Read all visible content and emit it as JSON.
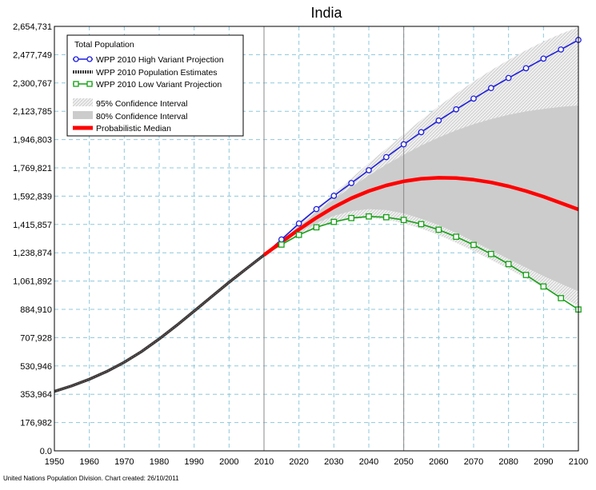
{
  "chart_data": {
    "type": "line",
    "title": "India",
    "credit": "United Nations Population Division. Chart created: 26/10/2011",
    "xlim": [
      1950,
      2100
    ],
    "ylim": [
      0,
      2654731
    ],
    "x_ticks": [
      1950,
      1960,
      1970,
      1980,
      1990,
      2000,
      2010,
      2020,
      2030,
      2040,
      2050,
      2060,
      2070,
      2080,
      2090,
      2100
    ],
    "y_ticks": [
      0,
      176982,
      353964,
      530946,
      707928,
      884910,
      1061892,
      1238874,
      1415857,
      1592839,
      1769821,
      1946803,
      2123785,
      2300767,
      2477749,
      2654731
    ],
    "y_tick_labels": [
      "0.0",
      "176,982",
      "353,964",
      "530,946",
      "707,928",
      "884,910",
      "1,061,892",
      "1,238,874",
      "1,415,857",
      "1,592,839",
      "1,769,821",
      "1,946,803",
      "2,123,785",
      "2,300,767",
      "2,477,749",
      "2,654,731"
    ],
    "grid": true,
    "vertical_markers": [
      2010,
      2050
    ],
    "legend": {
      "title": "Total Population",
      "position": "top-left",
      "entries": [
        "WPP 2010 High Variant Projection",
        "WPP 2010 Population Estimates",
        "WPP 2010 Low Variant Projection",
        "95% Confidence Interval",
        "80% Confidence Interval",
        "Probabilistic Median"
      ]
    },
    "colors": {
      "high": "#1e1edc",
      "estimates": "#3a3a3a",
      "low": "#16a016",
      "median": "#ff0000",
      "ci95": "#e6e6e6",
      "ci80": "#cccccc",
      "grid": "#8ec8dc",
      "marker_line": "#888888"
    },
    "series": [
      {
        "name": "WPP 2010 Population Estimates",
        "x": [
          1950,
          1955,
          1960,
          1965,
          1970,
          1975,
          1980,
          1985,
          1990,
          1995,
          2000,
          2005,
          2010
        ],
        "values": [
          371857,
          406374,
          447844,
          496400,
          553943,
          622097,
          700059,
          784491,
          873785,
          964486,
          1053898,
          1140043,
          1224614
        ]
      },
      {
        "name": "WPP 2010 High Variant Projection",
        "x": [
          2010,
          2015,
          2020,
          2025,
          2030,
          2035,
          2040,
          2045,
          2050,
          2055,
          2060,
          2065,
          2070,
          2075,
          2080,
          2085,
          2090,
          2095,
          2100
        ],
        "values": [
          1224614,
          1322000,
          1422000,
          1512000,
          1595000,
          1675000,
          1755000,
          1837000,
          1917000,
          1993000,
          2066000,
          2136000,
          2203000,
          2269000,
          2332000,
          2393000,
          2453000,
          2510000,
          2570000
        ]
      },
      {
        "name": "WPP 2010 Low Variant Projection",
        "x": [
          2010,
          2015,
          2020,
          2025,
          2030,
          2035,
          2040,
          2045,
          2050,
          2055,
          2060,
          2065,
          2070,
          2075,
          2080,
          2085,
          2090,
          2095,
          2100
        ],
        "values": [
          1224614,
          1290000,
          1351000,
          1398000,
          1432000,
          1456000,
          1466000,
          1461000,
          1444000,
          1418000,
          1383000,
          1339000,
          1288000,
          1231000,
          1168000,
          1100000,
          1028000,
          955000,
          884000
        ]
      },
      {
        "name": "Probabilistic Median",
        "x": [
          2010,
          2015,
          2020,
          2025,
          2030,
          2035,
          2040,
          2045,
          2050,
          2055,
          2060,
          2065,
          2070,
          2075,
          2080,
          2085,
          2090,
          2095,
          2100
        ],
        "values": [
          1224614,
          1306000,
          1385000,
          1458000,
          1524000,
          1580000,
          1625000,
          1660000,
          1686000,
          1702000,
          1708000,
          1706000,
          1696000,
          1679000,
          1655000,
          1625000,
          1590000,
          1550000,
          1510000
        ]
      },
      {
        "name": "95% Confidence Interval",
        "x": [
          2010,
          2015,
          2020,
          2025,
          2030,
          2035,
          2040,
          2045,
          2050,
          2055,
          2060,
          2065,
          2070,
          2075,
          2080,
          2085,
          2090,
          2095,
          2100
        ],
        "lower": [
          1224614,
          1295000,
          1354000,
          1400000,
          1432000,
          1450000,
          1455000,
          1446000,
          1423000,
          1390000,
          1350000,
          1302000,
          1250000,
          1195000,
          1138000,
          1080000,
          1022000,
          964000,
          905000
        ],
        "upper": [
          1224614,
          1318000,
          1416000,
          1515000,
          1610000,
          1705000,
          1800000,
          1890000,
          1980000,
          2070000,
          2155000,
          2235000,
          2310000,
          2380000,
          2445000,
          2505000,
          2560000,
          2608000,
          2650000
        ]
      },
      {
        "name": "80% Confidence Interval",
        "x": [
          2010,
          2015,
          2020,
          2025,
          2030,
          2035,
          2040,
          2045,
          2050,
          2055,
          2060,
          2065,
          2070,
          2075,
          2080,
          2085,
          2090,
          2095,
          2100
        ],
        "lower": [
          1224614,
          1300000,
          1368000,
          1425000,
          1470000,
          1500000,
          1512000,
          1506000,
          1485000,
          1452000,
          1412000,
          1363000,
          1310000,
          1255000,
          1200000,
          1146000,
          1094000,
          1045000,
          998000
        ],
        "upper": [
          1224614,
          1312000,
          1403000,
          1490000,
          1573000,
          1650000,
          1722000,
          1790000,
          1852000,
          1910000,
          1960000,
          2005000,
          2043000,
          2075000,
          2102000,
          2123000,
          2139000,
          2151000,
          2160000
        ]
      }
    ]
  }
}
